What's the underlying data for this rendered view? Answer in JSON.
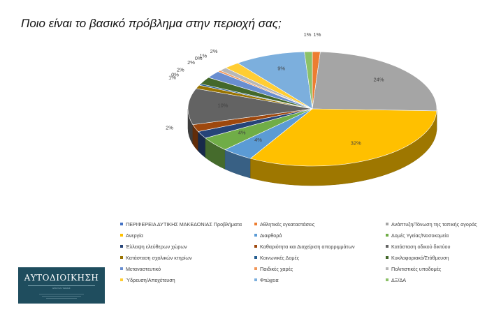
{
  "title": "Ποιο είναι το βασικό πρόβλημα στην περιοχή σας;",
  "chart_data": {
    "type": "pie",
    "style": "3d",
    "title": "Ποιο είναι το βασικό πρόβλημα στην περιοχή σας;",
    "slices": [
      {
        "name": "ΠΕΡΙΦΕΡΕΙΑ ΔΥΤΙΚΗΣ ΜΑΚΕΔΟΝΙΑΣ Προβλήματα",
        "value": 0,
        "label": "",
        "color": "#4472c4"
      },
      {
        "name": "Αθλητικές εγκαταστάσεις",
        "value": 1,
        "label": "1%",
        "color": "#ed7d31"
      },
      {
        "name": "Ανάπτυξη/Τόνωση της τοπικής αγοράς",
        "value": 24,
        "label": "24%",
        "color": "#a5a5a5"
      },
      {
        "name": "Ανεργία",
        "value": 32,
        "label": "32%",
        "color": "#ffc000"
      },
      {
        "name": "Διαφθορά",
        "value": 4,
        "label": "4%",
        "color": "#5b9bd5"
      },
      {
        "name": "Δομές Υγείας/Νοσοκομεία",
        "value": 4,
        "label": "4%",
        "color": "#70ad47"
      },
      {
        "name": "Έλλειψη ελεύθερων χώρων",
        "value": 2,
        "label": "",
        "color": "#264478"
      },
      {
        "name": "Καθαριότητα και Διαχείριση απορριμμάτων",
        "value": 2,
        "label": "2%",
        "color": "#9e480e"
      },
      {
        "name": "Κατάσταση οδικού δικτύου",
        "value": 10,
        "label": "10%",
        "color": "#636363"
      },
      {
        "name": "Κατάσταση σχολικών κτηρίων",
        "value": 1,
        "label": "1%",
        "color": "#997300"
      },
      {
        "name": "Κοινωνικές Δομές",
        "value": 0.4,
        "label": "0%",
        "color": "#255e91"
      },
      {
        "name": "Κυκλοφοριακό/Στάθμευση",
        "value": 2,
        "label": "2%",
        "color": "#43682b"
      },
      {
        "name": "Μεταναστευτικό",
        "value": 2,
        "label": "2%",
        "color": "#698ed0"
      },
      {
        "name": "Παιδικές χαρές",
        "value": 0.4,
        "label": "0%",
        "color": "#f1975a"
      },
      {
        "name": "Πολιτιστικές υποδομές",
        "value": 1,
        "label": "1%",
        "color": "#b7b7b7"
      },
      {
        "name": "Ύδρευση/Αποχέτευση",
        "value": 2,
        "label": "2%",
        "color": "#ffcd33"
      },
      {
        "name": "Φτώχεια",
        "value": 9,
        "label": "9%",
        "color": "#7cafdd"
      },
      {
        "name": "ΔΞ/ΔΑ",
        "value": 1,
        "label": "1%",
        "color": "#8cc168"
      }
    ],
    "legend_position": "bottom"
  },
  "logo": {
    "name": "ΑΥΤΟΔΙΟΙΚΗΣΗ",
    "tagline": "ΕΡΕΥΝΑ ΓΝΩΜΗΣ",
    "small_lines": [
      "",
      "",
      ""
    ]
  }
}
